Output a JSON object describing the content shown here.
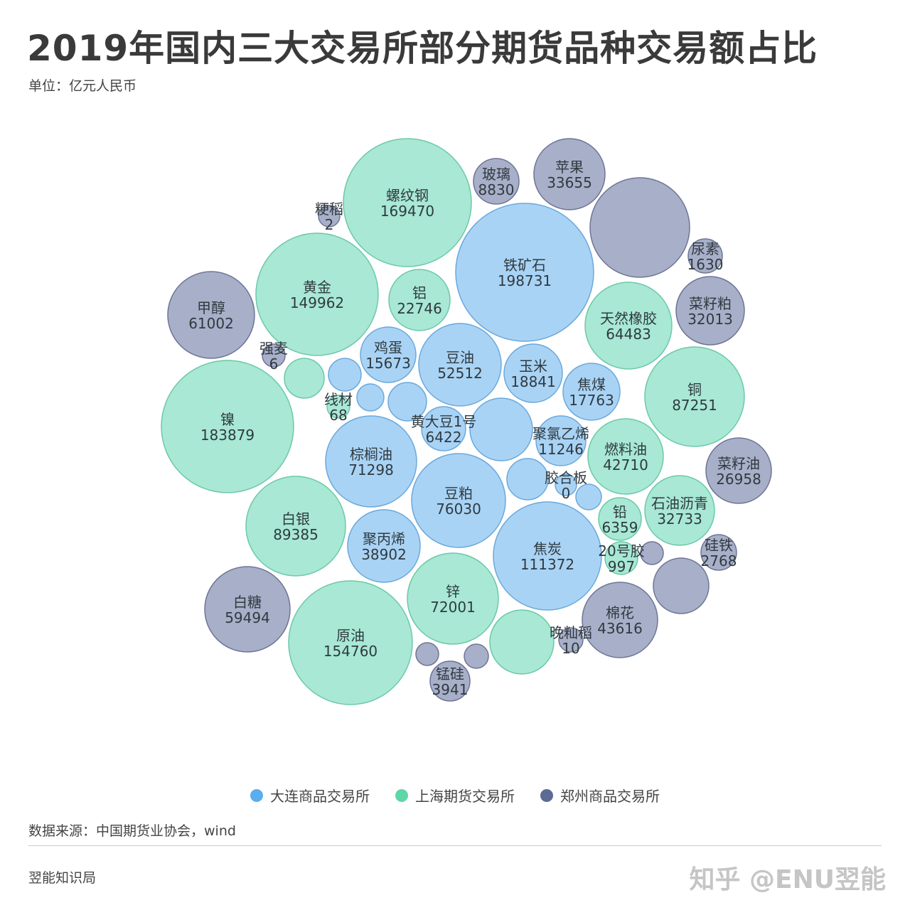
{
  "header": {
    "title": "2019年国内三大交易所部分期货品种交易额占比",
    "subtitle": "单位：亿元人民币"
  },
  "chart_data": {
    "type": "bubble",
    "title": "2019年国内三大交易所部分期货品种交易额占比",
    "unit": "亿元人民币",
    "legend_position": "bottom",
    "series": [
      {
        "name": "大连商品交易所",
        "color": "#5aaef0",
        "fill": "#a9d3f5",
        "stroke": "#6aa9dc",
        "items": [
          {
            "name": "铁矿石",
            "value": 198731
          },
          {
            "name": "鸡蛋",
            "value": 15673
          },
          {
            "name": "豆油",
            "value": 52512
          },
          {
            "name": "玉米",
            "value": 18841
          },
          {
            "name": "焦煤",
            "value": 17763
          },
          {
            "name": "黄大豆1号",
            "value": 6422
          },
          {
            "name": "聚氯乙烯",
            "value": 11246
          },
          {
            "name": "棕榈油",
            "value": 71298
          },
          {
            "name": "胶合板",
            "value": 0
          },
          {
            "name": "豆粕",
            "value": 76030
          },
          {
            "name": "聚丙烯",
            "value": 38902
          },
          {
            "name": "焦炭",
            "value": 111372
          }
        ]
      },
      {
        "name": "上海期货交易所",
        "color": "#5ed6a8",
        "fill": "#a8e8d4",
        "stroke": "#6cc9a8",
        "items": [
          {
            "name": "螺纹钢",
            "value": 169470
          },
          {
            "name": "黄金",
            "value": 149962
          },
          {
            "name": "铝",
            "value": 22746
          },
          {
            "name": "天然橡胶",
            "value": 64483
          },
          {
            "name": "铜",
            "value": 87251
          },
          {
            "name": "镍",
            "value": 183879
          },
          {
            "name": "燃料油",
            "value": 42710
          },
          {
            "name": "石油沥青",
            "value": 32733
          },
          {
            "name": "铅",
            "value": 6359
          },
          {
            "name": "20号胶",
            "value": 997
          },
          {
            "name": "白银",
            "value": 89385
          },
          {
            "name": "原油",
            "value": 154760
          },
          {
            "name": "锌",
            "value": 72001
          },
          {
            "name": "线材",
            "value": 68
          }
        ]
      },
      {
        "name": "郑州商品交易所",
        "color": "#5d6a94",
        "fill": "#a8afc8",
        "stroke": "#6e7596",
        "items": [
          {
            "name": "玻璃",
            "value": 8830
          },
          {
            "name": "苹果",
            "value": 33655
          },
          {
            "name": "粳稻",
            "value": 2
          },
          {
            "name": "甲醇",
            "value": 61002
          },
          {
            "name": "尿素",
            "value": 1630
          },
          {
            "name": "菜籽粕",
            "value": 32013
          },
          {
            "name": "强麦",
            "value": 6
          },
          {
            "name": "菜籽油",
            "value": 26958
          },
          {
            "name": "硅铁",
            "value": 2768
          },
          {
            "name": "棉花",
            "value": 43616
          },
          {
            "name": "白糖",
            "value": 59494
          },
          {
            "name": "锰硅",
            "value": 3941
          },
          {
            "name": "晚籼稻",
            "value": 10
          }
        ]
      }
    ]
  },
  "footer": {
    "source": "数据来源：中国期货业协会，wind",
    "brand": "翌能知识局",
    "watermark": "知乎 @ENU翌能"
  }
}
